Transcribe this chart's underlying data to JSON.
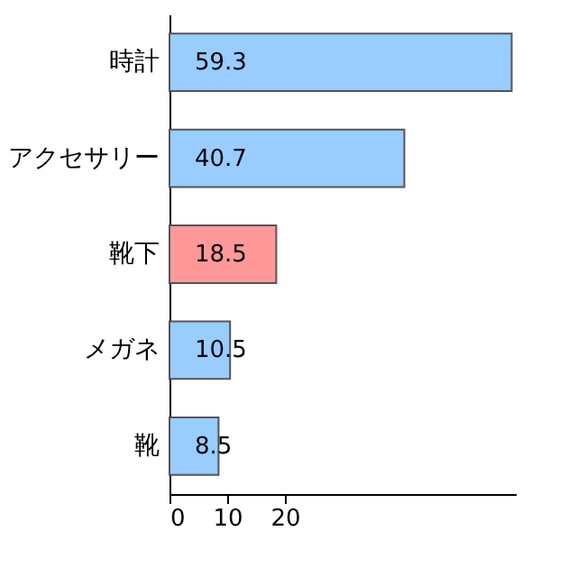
{
  "chart_data": {
    "type": "bar",
    "orientation": "horizontal",
    "categories": [
      "時計",
      "アクセサリー",
      "靴下",
      "メガネ",
      "靴"
    ],
    "values": [
      59.3,
      40.7,
      18.5,
      10.5,
      8.5
    ],
    "colors": [
      "#99ccff",
      "#99ccff",
      "#ff9999",
      "#99ccff",
      "#99ccff"
    ],
    "xlim": [
      0,
      60
    ],
    "xticks": [
      0,
      10,
      20
    ],
    "data_labels": true
  }
}
